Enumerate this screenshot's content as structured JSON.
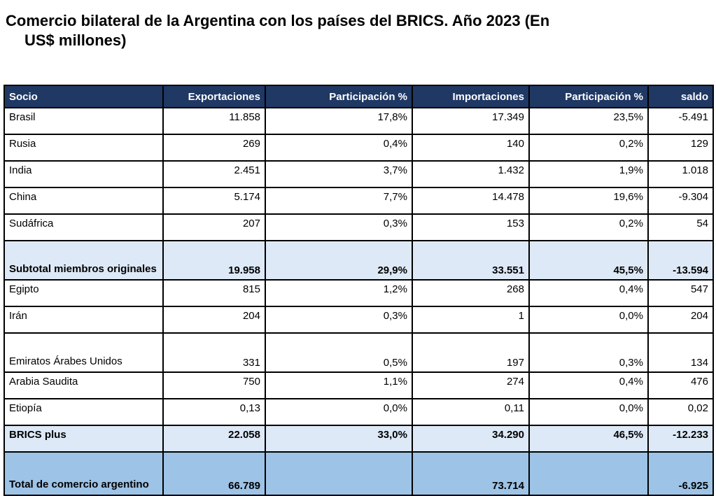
{
  "title_line1": "Comercio bilateral de la Argentina con los países del BRICS. Año 2023 (En",
  "title_line2": "US$ millones)",
  "columns": [
    "Socio",
    "Exportaciones",
    "Participación %",
    "Importaciones",
    "Participación %",
    "saldo"
  ],
  "rows": [
    {
      "type": "normal",
      "cells": [
        "Brasil",
        "11.858",
        "17,8%",
        "17.349",
        "23,5%",
        "-5.491"
      ]
    },
    {
      "type": "normal",
      "cells": [
        "Rusia",
        "269",
        "0,4%",
        "140",
        "0,2%",
        "129"
      ]
    },
    {
      "type": "normal",
      "cells": [
        "India",
        "2.451",
        "3,7%",
        "1.432",
        "1,9%",
        "1.018"
      ]
    },
    {
      "type": "normal",
      "cells": [
        "China",
        "5.174",
        "7,7%",
        "14.478",
        "19,6%",
        "-9.304"
      ]
    },
    {
      "type": "normal",
      "cells": [
        "Sudáfrica",
        "207",
        "0,3%",
        "153",
        "0,2%",
        "54"
      ]
    },
    {
      "type": "sub tall",
      "cells": [
        "Subtotal miembros originales",
        "19.958",
        "29,9%",
        "33.551",
        "45,5%",
        "-13.594"
      ]
    },
    {
      "type": "normal",
      "cells": [
        "Egipto",
        "815",
        "1,2%",
        "268",
        "0,4%",
        "547"
      ]
    },
    {
      "type": "normal",
      "cells": [
        "Irán",
        "204",
        "0,3%",
        "1",
        "0,0%",
        "204"
      ]
    },
    {
      "type": "tall",
      "cells": [
        "Emiratos Árabes Unidos",
        "331",
        "0,5%",
        "197",
        "0,3%",
        "134"
      ]
    },
    {
      "type": "normal",
      "cells": [
        "Arabia Saudita",
        "750",
        "1,1%",
        "274",
        "0,4%",
        "476"
      ]
    },
    {
      "type": "normal",
      "cells": [
        "Etiopía",
        "0,13",
        "0,0%",
        "0,11",
        "0,0%",
        "0,02"
      ]
    },
    {
      "type": "sub",
      "cells": [
        "BRICS plus",
        "22.058",
        "33,0%",
        "34.290",
        "46,5%",
        "-12.233"
      ]
    },
    {
      "type": "total tall",
      "cells": [
        "Total de comercio argentino",
        "66.789",
        "",
        "73.714",
        "",
        "-6.925"
      ]
    }
  ],
  "colors": {
    "header": "#1f3864",
    "subtotal": "#dde9f6",
    "total": "#9dc3e6"
  }
}
